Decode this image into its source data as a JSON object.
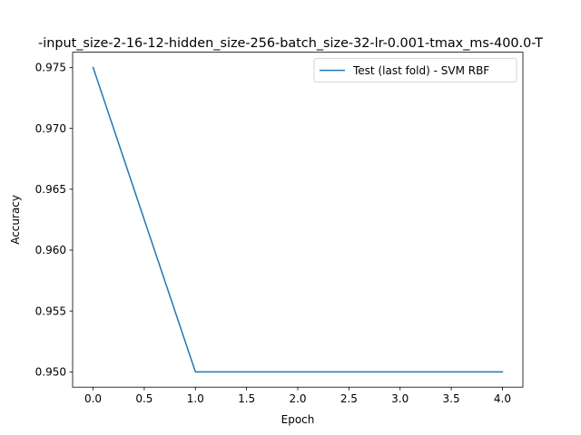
{
  "chart_data": {
    "type": "line",
    "title": "-input_size-2-16-12-hidden_size-256-batch_size-32-lr-0.001-tmax_ms-400.0-T",
    "xlabel": "Epoch",
    "ylabel": "Accuracy",
    "x": [
      0,
      1,
      2,
      3,
      4
    ],
    "series": [
      {
        "name": "Test (last fold) - SVM RBF",
        "color": "#1f77b4",
        "values": [
          0.975,
          0.95,
          0.95,
          0.95,
          0.95
        ]
      }
    ],
    "xlim": [
      -0.2,
      4.2
    ],
    "ylim": [
      0.94875,
      0.97625
    ],
    "xticks": [
      "0.0",
      "0.5",
      "1.0",
      "1.5",
      "2.0",
      "2.5",
      "3.0",
      "3.5",
      "4.0"
    ],
    "yticks": [
      "0.950",
      "0.955",
      "0.960",
      "0.965",
      "0.970",
      "0.975"
    ],
    "grid": false,
    "legend_position": "top-right"
  }
}
